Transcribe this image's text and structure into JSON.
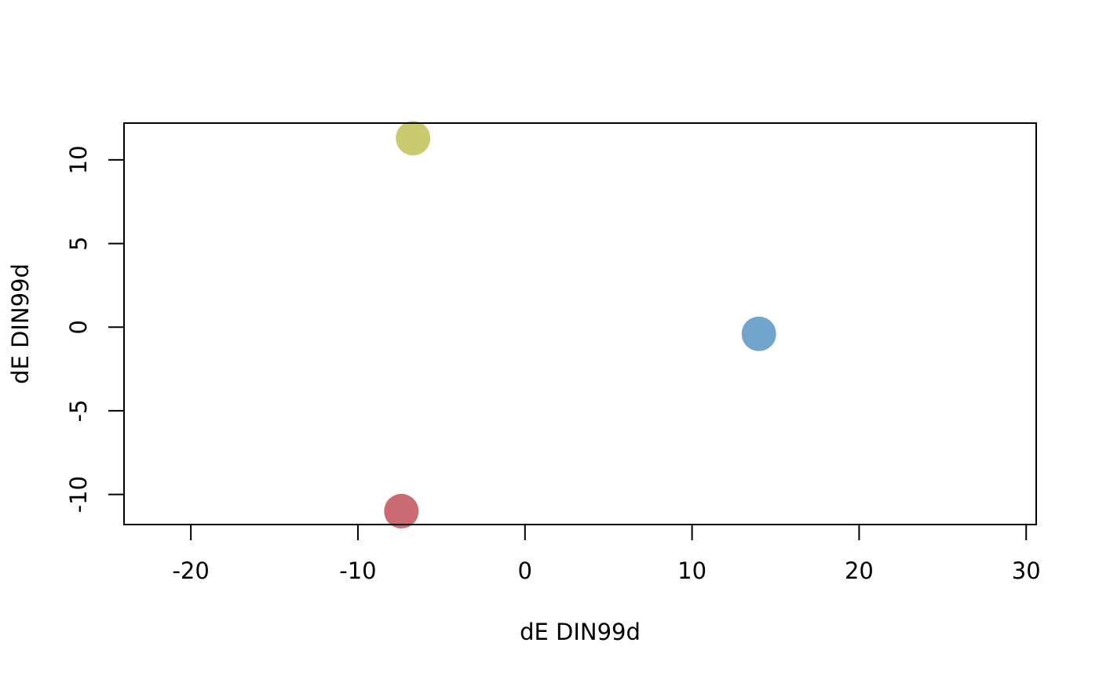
{
  "chart_data": {
    "type": "scatter",
    "title": "",
    "xlabel": "dE DIN99d",
    "ylabel": "dE DIN99d",
    "xlim": [
      -24,
      30.6
    ],
    "ylim": [
      -11.8,
      12.2
    ],
    "x_ticks": [
      -20,
      -10,
      0,
      10,
      20,
      30
    ],
    "x_tick_labels": [
      "-20",
      "-10",
      "0",
      "10",
      "20",
      "30"
    ],
    "y_ticks": [
      -10,
      -5,
      0,
      5,
      10
    ],
    "y_tick_labels": [
      "-10",
      "-5",
      "0",
      "5",
      "10"
    ],
    "grid": false,
    "legend": "none",
    "points": [
      {
        "x": -6.7,
        "y": 11.3,
        "color": "#cacb6e"
      },
      {
        "x": 14.0,
        "y": -0.4,
        "color": "#72a5cb"
      },
      {
        "x": -7.4,
        "y": -11.0,
        "color": "#c96b71"
      }
    ]
  }
}
